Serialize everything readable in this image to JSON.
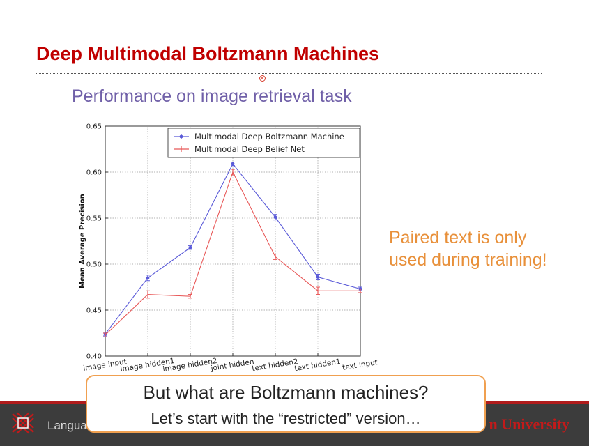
{
  "slide": {
    "title": "Deep Multimodal Boltzmann Machines",
    "subtitle": "Performance on image retrieval task",
    "note_line1": "Paired text is only",
    "note_line2": "used during training!"
  },
  "caption": {
    "line1": "But what are Boltzmann machines?",
    "line2": "Let’s start with the “restricted” version…"
  },
  "footer": {
    "left_text": "Langua",
    "right_text": "n University"
  },
  "colors": {
    "title": "#c00000",
    "subtitle": "#7060a8",
    "note": "#e8903a",
    "series_dbm": "#5a5ad8",
    "series_dbn": "#e85858",
    "caption_border": "#f0a050"
  },
  "chart_data": {
    "type": "line",
    "categories": [
      "image input",
      "image hidden1",
      "image hidden2",
      "joint hidden",
      "text hidden2",
      "text hidden1",
      "text input"
    ],
    "ylabel": "Mean Average Precision",
    "ylim": [
      0.4,
      0.65
    ],
    "yticks": [
      "0.40",
      "0.45",
      "0.50",
      "0.55",
      "0.60",
      "0.65"
    ],
    "grid": true,
    "legend_position": "top-right",
    "series": [
      {
        "name": "Multimodal Deep Boltzmann Machine",
        "color": "#5a5ad8",
        "values": [
          0.424,
          0.485,
          0.518,
          0.609,
          0.551,
          0.486,
          0.473
        ],
        "errors": [
          0.002,
          0.003,
          0.002,
          0.002,
          0.003,
          0.003,
          0.002
        ]
      },
      {
        "name": "Multimodal Deep Belief Net",
        "color": "#e85858",
        "values": [
          0.423,
          0.467,
          0.465,
          0.6,
          0.508,
          0.471,
          0.471
        ],
        "errors": [
          0.002,
          0.004,
          0.002,
          0.003,
          0.003,
          0.004,
          0.002
        ]
      }
    ]
  }
}
